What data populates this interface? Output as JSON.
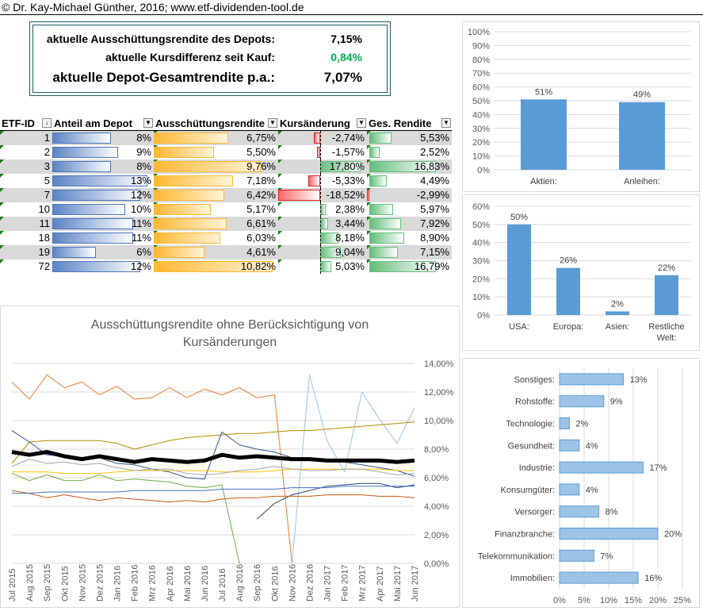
{
  "header": {
    "text": "© Dr. Kay-Michael Günther, 2016; www.etf-dividenden-tool.de"
  },
  "summary": {
    "r1_label": "aktuelle Ausschüttungsrendite des Depots:",
    "r1_value": "7,15%",
    "r2_label": "aktuelle Kursdifferenz seit Kauf:",
    "r2_value": "0,84%",
    "r3_label": "aktuelle Depot-Gesamtrendite p.a.:",
    "r3_value": "7,07%",
    "colors": {
      "positive": "#00b050",
      "frame": "#1f5f5f"
    }
  },
  "table": {
    "headers": [
      "ETF-ID",
      "Anteil am Depot",
      "Ausschüttungsrendite",
      "Kursänderung",
      "Ges. Rendite"
    ],
    "rows": [
      {
        "id": "1",
        "anteil": "8%",
        "anteil_v": 8,
        "aus": "6,75%",
        "aus_v": 6.75,
        "kurs": "-2,74%",
        "kurs_v": -2.74,
        "ges": "5,53%",
        "ges_v": 5.53,
        "shade": true
      },
      {
        "id": "2",
        "anteil": "9%",
        "anteil_v": 9,
        "aus": "5,50%",
        "aus_v": 5.5,
        "kurs": "-1,57%",
        "kurs_v": -1.57,
        "ges": "2,52%",
        "ges_v": 2.52,
        "shade": false
      },
      {
        "id": "3",
        "anteil": "8%",
        "anteil_v": 8,
        "aus": "9,76%",
        "aus_v": 9.76,
        "kurs": "17,80%",
        "kurs_v": 17.8,
        "ges": "16,83%",
        "ges_v": 16.83,
        "shade": true
      },
      {
        "id": "5",
        "anteil": "13%",
        "anteil_v": 13,
        "aus": "7,18%",
        "aus_v": 7.18,
        "kurs": "-5,33%",
        "kurs_v": -5.33,
        "ges": "4,49%",
        "ges_v": 4.49,
        "shade": false
      },
      {
        "id": "7",
        "anteil": "12%",
        "anteil_v": 12,
        "aus": "6,42%",
        "aus_v": 6.42,
        "kurs": "-18,52%",
        "kurs_v": -18.52,
        "ges": "-2,99%",
        "ges_v": -2.99,
        "shade": true
      },
      {
        "id": "10",
        "anteil": "10%",
        "anteil_v": 10,
        "aus": "5,17%",
        "aus_v": 5.17,
        "kurs": "2,38%",
        "kurs_v": 2.38,
        "ges": "5,97%",
        "ges_v": 5.97,
        "shade": false
      },
      {
        "id": "11",
        "anteil": "11%",
        "anteil_v": 11,
        "aus": "6,61%",
        "aus_v": 6.61,
        "kurs": "3,44%",
        "kurs_v": 3.44,
        "ges": "7,92%",
        "ges_v": 7.92,
        "shade": true
      },
      {
        "id": "18",
        "anteil": "11%",
        "anteil_v": 11,
        "aus": "6,03%",
        "aus_v": 6.03,
        "kurs": "8,18%",
        "kurs_v": 8.18,
        "ges": "8,90%",
        "ges_v": 8.9,
        "shade": false
      },
      {
        "id": "19",
        "anteil": "6%",
        "anteil_v": 6,
        "aus": "4,61%",
        "aus_v": 4.61,
        "kurs": "9,04%",
        "kurs_v": 9.04,
        "ges": "7,15%",
        "ges_v": 7.15,
        "shade": true
      },
      {
        "id": "72",
        "anteil": "12%",
        "anteil_v": 12,
        "aus": "10,82%",
        "aus_v": 10.82,
        "kurs": "5,03%",
        "kurs_v": 5.03,
        "ges": "16,79%",
        "ges_v": 16.79,
        "shade": false
      }
    ]
  },
  "chart_data": [
    {
      "type": "line",
      "title": "Ausschüttungsrendite ohne Berücksichtigung von Kursänderungen",
      "x": [
        "Jul 2015",
        "Aug 2015",
        "Sep 2015",
        "Okt 2015",
        "Nov 2015",
        "Dez 2015",
        "Jan 2016",
        "Feb 2016",
        "Mrz 2016",
        "Apr 2016",
        "Mai 2016",
        "Jun 2016",
        "Jul 2016",
        "Aug 2016",
        "Sep 2016",
        "Okt 2016",
        "Nov 2016",
        "Dez 2016",
        "Jan 2017",
        "Feb 2017",
        "Mrz 2017",
        "Apr 2017",
        "Mai 2017",
        "Jun 2017"
      ],
      "yticks": [
        "0,00%",
        "2,00%",
        "4,00%",
        "6,00%",
        "8,00%",
        "10,00%",
        "12,00%",
        "14,00%"
      ],
      "ylim": [
        0,
        14
      ],
      "series": [
        {
          "color": "#ed7d31",
          "width": 1,
          "values": [
            12.7,
            11.5,
            13.2,
            12.3,
            12.7,
            11.8,
            12.4,
            11.5,
            11.6,
            12.3,
            11.6,
            12.2,
            11.8,
            12.3,
            11.6,
            11.8,
            0.0,
            null,
            null,
            null,
            null,
            null,
            null,
            null
          ]
        },
        {
          "color": "#9dc3e6",
          "width": 1,
          "values": [
            null,
            null,
            null,
            null,
            null,
            null,
            null,
            null,
            null,
            null,
            null,
            null,
            null,
            null,
            null,
            null,
            0.0,
            13.2,
            8.6,
            6.4,
            12.0,
            10.1,
            8.4,
            10.9
          ]
        },
        {
          "color": "#b38f00",
          "width": 1,
          "values": [
            7.0,
            8.5,
            8.6,
            8.6,
            8.6,
            8.6,
            8.4,
            8.0,
            8.3,
            8.6,
            8.8,
            8.9,
            9.0,
            9.1,
            9.1,
            9.2,
            9.3,
            9.3,
            9.4,
            9.5,
            9.6,
            9.7,
            9.8,
            9.9
          ]
        },
        {
          "color": "#2f5597",
          "width": 1,
          "values": [
            9.3,
            8.5,
            7.6,
            7.5,
            7.2,
            7.4,
            7.0,
            6.9,
            6.6,
            6.4,
            6.0,
            5.9,
            9.2,
            8.3,
            8.0,
            7.8,
            7.4,
            7.3,
            7.3,
            7.1,
            6.9,
            6.7,
            6.5,
            6.1
          ]
        },
        {
          "color": "#264478",
          "width": 1,
          "values": [
            null,
            null,
            null,
            null,
            null,
            null,
            null,
            null,
            null,
            null,
            null,
            null,
            null,
            null,
            3.1,
            4.2,
            4.8,
            5.1,
            5.4,
            5.5,
            5.6,
            5.6,
            5.3,
            5.5
          ]
        },
        {
          "color": "#70ad47",
          "width": 1,
          "values": [
            6.3,
            5.8,
            6.2,
            5.8,
            5.8,
            6.2,
            5.8,
            5.9,
            5.8,
            5.7,
            5.4,
            5.3,
            5.5,
            0.0,
            null,
            null,
            null,
            null,
            null,
            null,
            null,
            null,
            null,
            null
          ]
        },
        {
          "color": "#ffc000",
          "width": 1,
          "values": [
            6.4,
            6.4,
            6.4,
            6.3,
            6.3,
            6.3,
            6.4,
            6.5,
            6.5,
            6.5,
            6.5,
            6.5,
            6.4,
            6.4,
            6.4,
            6.5,
            6.6,
            6.6,
            6.6,
            6.6,
            6.6,
            6.6,
            6.5,
            6.5
          ]
        },
        {
          "color": "#a5a5a5",
          "width": 1,
          "values": [
            6.8,
            7.3,
            7.0,
            7.1,
            6.9,
            7.0,
            6.7,
            6.5,
            6.6,
            6.6,
            6.3,
            6.2,
            6.3,
            6.5,
            6.6,
            6.8,
            6.6,
            6.5,
            6.5,
            6.6,
            6.6,
            6.4,
            6.2,
            6.3
          ]
        },
        {
          "color": "#c55a11",
          "width": 1,
          "values": [
            5.1,
            4.9,
            4.6,
            4.8,
            4.6,
            4.4,
            4.6,
            4.5,
            4.4,
            4.3,
            4.4,
            4.3,
            4.5,
            4.6,
            4.6,
            4.7,
            4.7,
            4.7,
            4.8,
            4.8,
            4.8,
            4.7,
            4.7,
            4.6
          ]
        },
        {
          "color": "#4472c4",
          "width": 1,
          "values": [
            4.9,
            4.9,
            5.0,
            5.0,
            5.0,
            5.0,
            5.0,
            5.1,
            5.1,
            5.1,
            5.1,
            5.1,
            5.2,
            5.2,
            5.2,
            5.2,
            5.3,
            5.3,
            5.3,
            5.4,
            5.4,
            5.4,
            5.4,
            5.4
          ]
        },
        {
          "color": "#000000",
          "width": 5,
          "values": [
            7.8,
            7.6,
            7.8,
            7.5,
            7.3,
            7.5,
            7.3,
            7.1,
            7.3,
            7.2,
            7.1,
            7.2,
            7.6,
            7.4,
            7.5,
            7.4,
            7.3,
            7.3,
            7.2,
            7.2,
            7.2,
            7.2,
            7.1,
            7.2
          ]
        }
      ]
    },
    {
      "type": "bar",
      "categories": [
        "Aktien:",
        "Anleihen:"
      ],
      "values": [
        51,
        49
      ],
      "labels": [
        "51%",
        "49%"
      ],
      "yticks": [
        "0%",
        "10%",
        "20%",
        "30%",
        "40%",
        "50%",
        "60%",
        "70%",
        "80%",
        "90%",
        "100%"
      ],
      "ylim": [
        0,
        100
      ],
      "color": "#5b9bd5"
    },
    {
      "type": "bar",
      "categories": [
        "USA:",
        "Europa:",
        "Asien:",
        "Restliche Welt:"
      ],
      "values": [
        50,
        26,
        2,
        22
      ],
      "labels": [
        "50%",
        "26%",
        "2%",
        "22%"
      ],
      "yticks": [
        "0%",
        "10%",
        "20%",
        "30%",
        "40%",
        "50%",
        "60%"
      ],
      "ylim": [
        0,
        60
      ],
      "color": "#5b9bd5"
    },
    {
      "type": "bar",
      "orientation": "horizontal",
      "categories": [
        "Sonstiges:",
        "Rohstoffe:",
        "Technologie:",
        "Gesundheit:",
        "Industrie:",
        "Konsumgüter:",
        "Versorger:",
        "Finanzbranche:",
        "Telekommunikation:",
        "Immobilien:"
      ],
      "values": [
        13,
        9,
        2,
        4,
        17,
        4,
        8,
        20,
        7,
        16
      ],
      "labels": [
        "13%",
        "9%",
        "2%",
        "4%",
        "17%",
        "4%",
        "8%",
        "20%",
        "7%",
        "16%"
      ],
      "xticks": [
        "0%",
        "5%",
        "10%",
        "15%",
        "20%",
        "25%"
      ],
      "xlim": [
        0,
        25
      ],
      "color": "#9dc3e6",
      "border": "#5b9bd5"
    }
  ]
}
